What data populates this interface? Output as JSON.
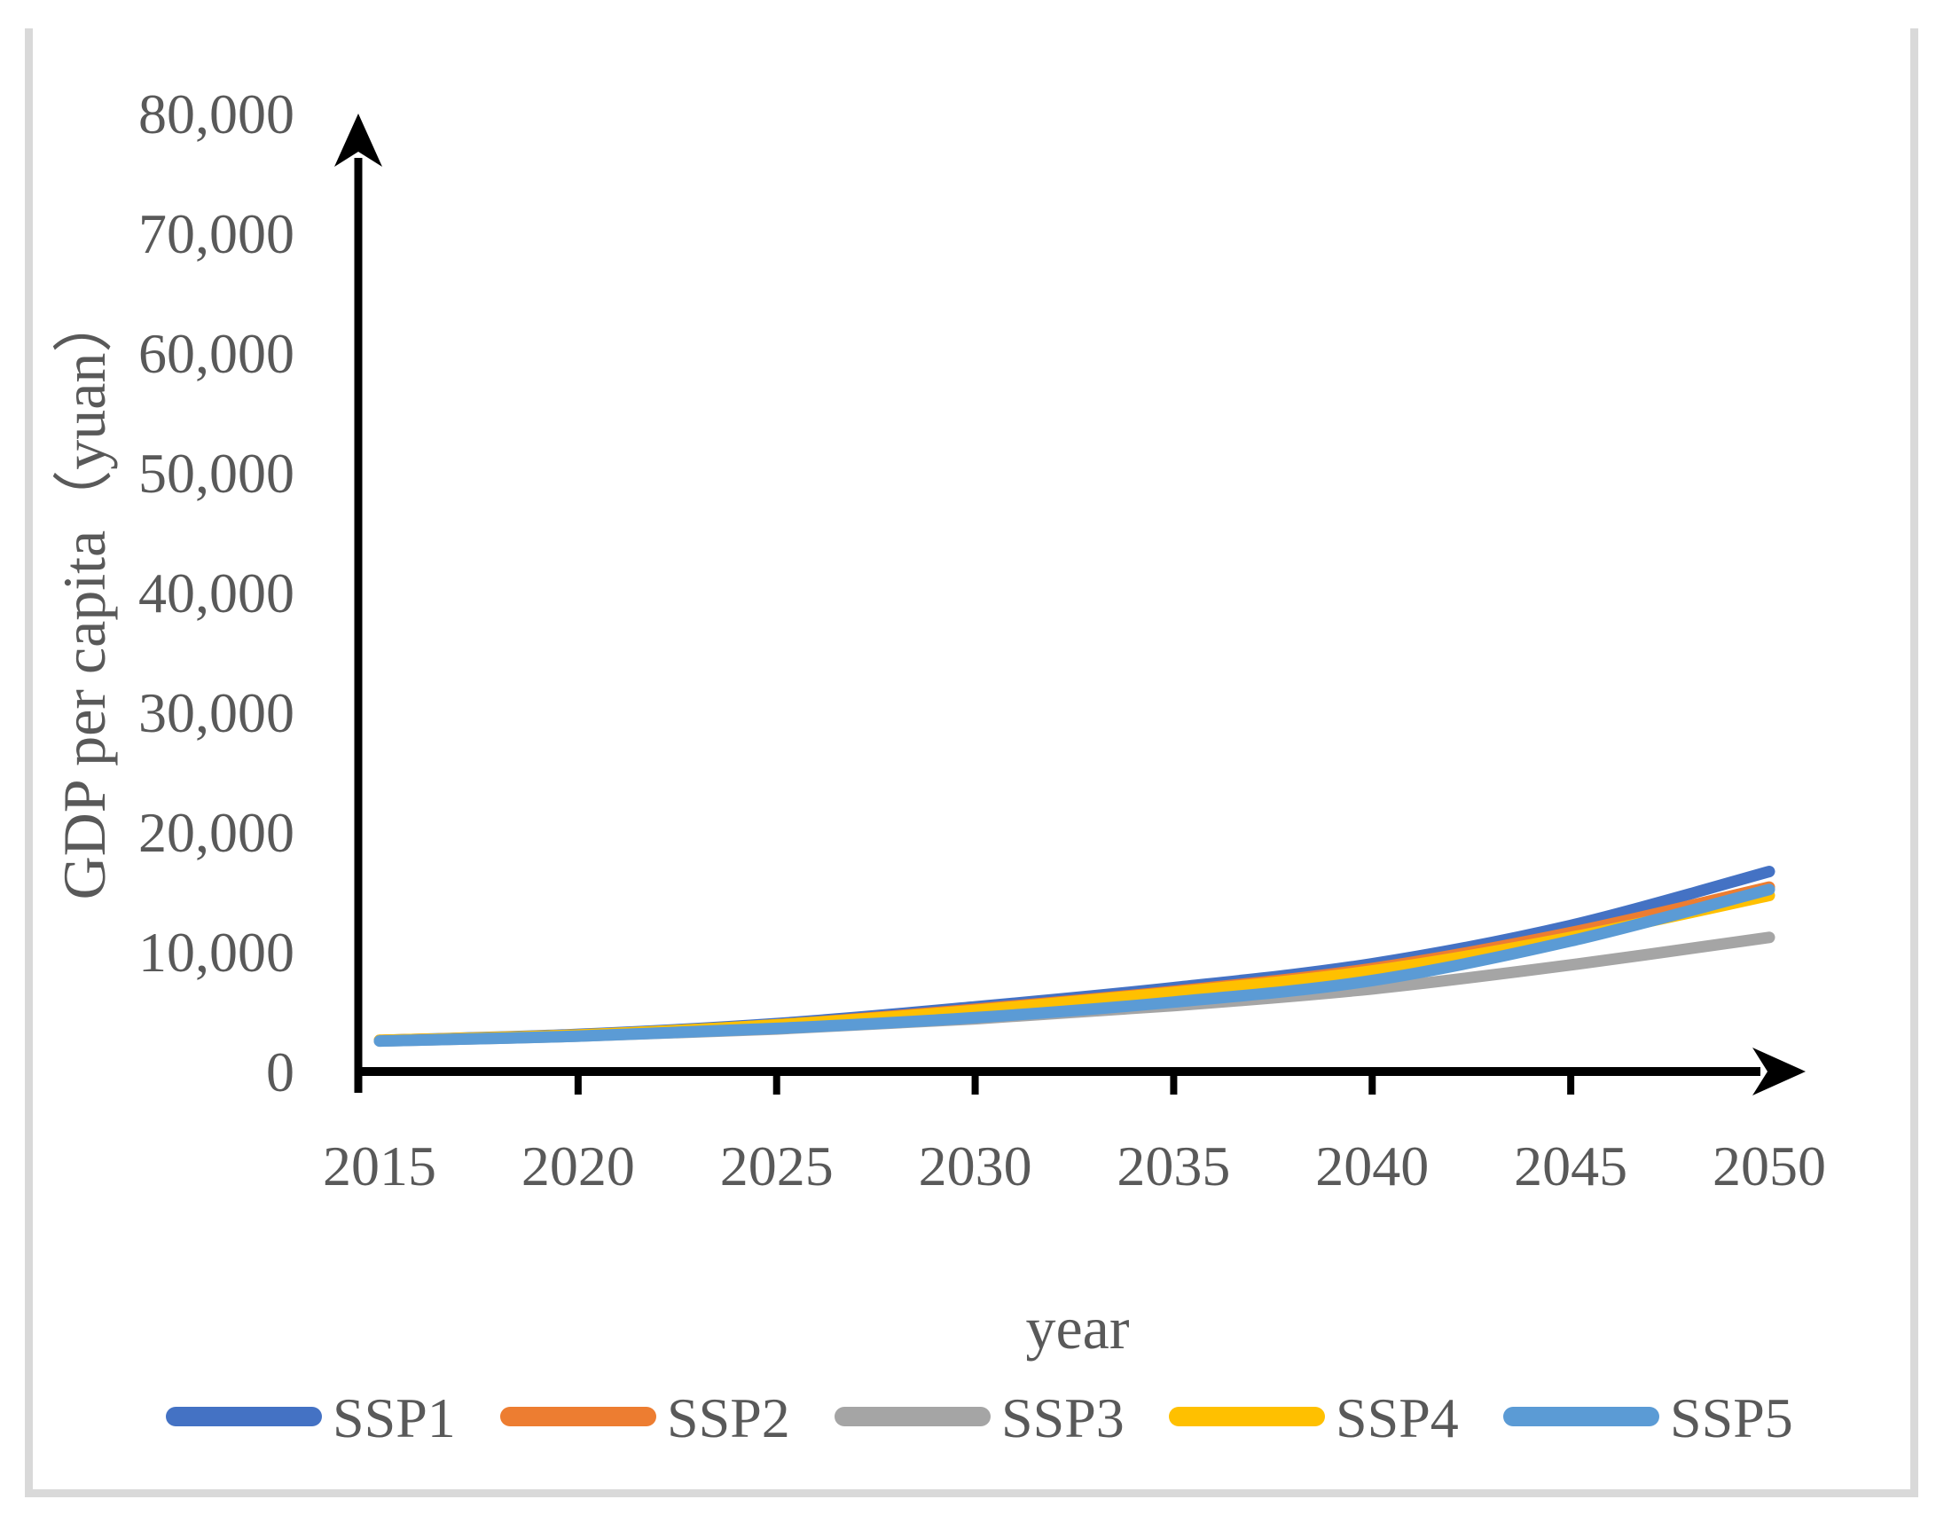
{
  "figure": {
    "background": "#ffffff",
    "border_color": "#d9d9d9",
    "text_color": "#595959",
    "axis_color": "#000000"
  },
  "chart_data": {
    "type": "line",
    "title": "",
    "xlabel": "year",
    "ylabel": "GDP per capita（yuan）",
    "x": [
      2015,
      2020,
      2025,
      2030,
      2035,
      2040,
      2045,
      2050
    ],
    "xtick_labels": [
      "2015",
      "2020",
      "2025",
      "2030",
      "2035",
      "2040",
      "2045",
      "2050"
    ],
    "ytick_values": [
      0,
      10000,
      20000,
      30000,
      40000,
      50000,
      60000,
      70000,
      80000
    ],
    "ytick_labels": [
      "0",
      "10,000",
      "20,000",
      "30,000",
      "40,000",
      "50,000",
      "60,000",
      "70,000",
      "80,000"
    ],
    "xlim": [
      2015,
      2050
    ],
    "ylim": [
      0,
      80000
    ],
    "grid": false,
    "legend_position": "bottom",
    "series": [
      {
        "name": "SSP1",
        "color": "#4472C4",
        "values": [
          2600,
          3100,
          4000,
          5400,
          7000,
          9000,
          12200,
          16700
        ]
      },
      {
        "name": "SSP2",
        "color": "#ED7D31",
        "values": [
          2600,
          3050,
          3900,
          5200,
          6700,
          8600,
          11600,
          15400
        ]
      },
      {
        "name": "SSP3",
        "color": "#A5A5A5",
        "values": [
          2550,
          2950,
          3550,
          4400,
          5500,
          6900,
          8900,
          11200
        ]
      },
      {
        "name": "SSP4",
        "color": "#FFC000",
        "values": [
          2600,
          3050,
          3900,
          5100,
          6600,
          8400,
          11200,
          14700
        ]
      },
      {
        "name": "SSP5",
        "color": "#5B9BD5",
        "values": [
          2550,
          2950,
          3600,
          4500,
          5800,
          7600,
          10900,
          15200
        ]
      }
    ]
  }
}
